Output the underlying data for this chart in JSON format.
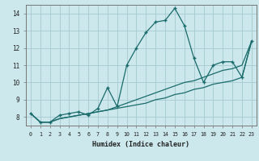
{
  "xlabel": "Humidex (Indice chaleur)",
  "bg_color": "#cce8ec",
  "grid_color": "#aacdd4",
  "line_color": "#1a6b6b",
  "x_values": [
    0,
    1,
    2,
    3,
    4,
    5,
    6,
    7,
    8,
    9,
    10,
    11,
    12,
    13,
    14,
    15,
    16,
    17,
    18,
    19,
    20,
    21,
    22,
    23
  ],
  "main_curve": [
    8.2,
    7.7,
    7.7,
    8.1,
    8.2,
    8.3,
    8.1,
    8.5,
    9.7,
    8.6,
    11.0,
    12.0,
    12.9,
    13.5,
    13.6,
    14.3,
    13.3,
    11.4,
    10.0,
    11.0,
    11.2,
    11.2,
    10.3,
    12.4
  ],
  "line2": [
    8.2,
    7.7,
    7.7,
    7.9,
    8.0,
    8.1,
    8.2,
    8.3,
    8.4,
    8.6,
    8.8,
    9.0,
    9.2,
    9.4,
    9.6,
    9.8,
    10.0,
    10.1,
    10.3,
    10.5,
    10.7,
    10.8,
    11.0,
    12.4
  ],
  "line3": [
    8.2,
    7.7,
    7.7,
    7.9,
    8.0,
    8.1,
    8.2,
    8.3,
    8.4,
    8.5,
    8.6,
    8.7,
    8.8,
    9.0,
    9.1,
    9.3,
    9.4,
    9.6,
    9.7,
    9.9,
    10.0,
    10.1,
    10.3,
    12.4
  ],
  "ylim": [
    7.5,
    14.5
  ],
  "yticks": [
    8,
    9,
    10,
    11,
    12,
    13,
    14
  ],
  "xlim": [
    -0.5,
    23.5
  ]
}
